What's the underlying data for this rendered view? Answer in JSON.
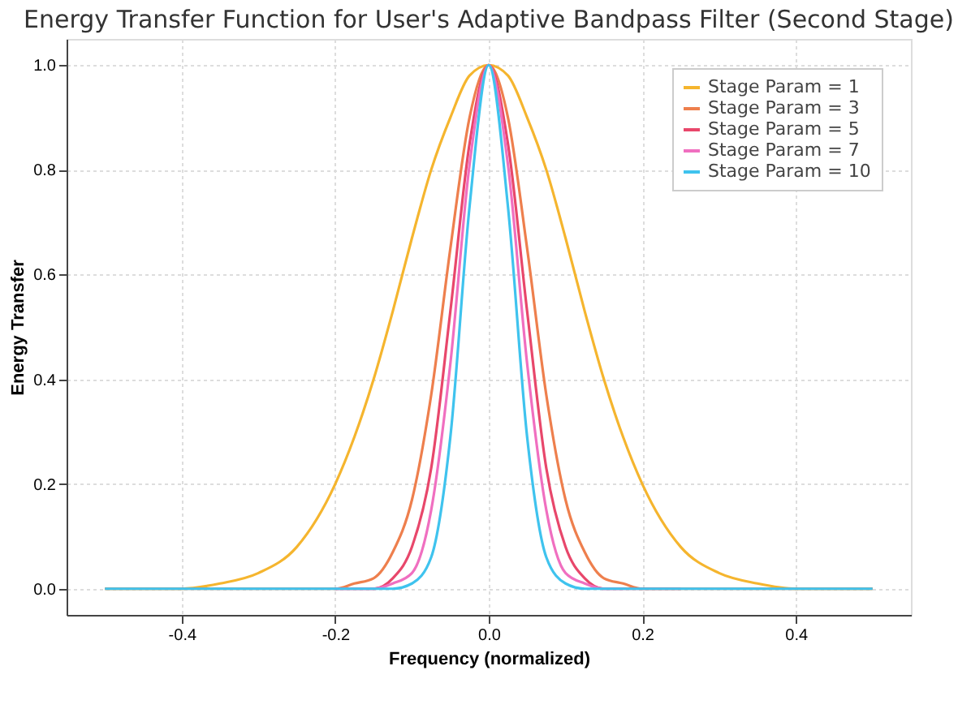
{
  "chart_data": {
    "type": "line",
    "title": "Energy Transfer Function for User's Adaptive Bandpass Filter (Second Stage)",
    "xlabel": "Frequency (normalized)",
    "ylabel": "Energy Transfer",
    "x": [
      -0.5,
      -0.4,
      -0.35,
      -0.3,
      -0.25,
      -0.2,
      -0.175,
      -0.15,
      -0.125,
      -0.1,
      -0.075,
      -0.05,
      -0.025,
      0,
      0.025,
      0.05,
      0.075,
      0.1,
      0.125,
      0.15,
      0.175,
      0.2,
      0.25,
      0.3,
      0.35,
      0.4,
      0.5
    ],
    "series": [
      {
        "name": "Stage Param = 1",
        "color": "#f5b52e",
        "values": [
          0,
          0,
          0.01,
          0.03,
          0.08,
          0.2,
          0.29,
          0.4,
          0.53,
          0.67,
          0.8,
          0.9,
          0.98,
          1,
          0.98,
          0.9,
          0.8,
          0.67,
          0.53,
          0.4,
          0.29,
          0.2,
          0.08,
          0.03,
          0.01,
          0,
          0
        ]
      },
      {
        "name": "Stage Param = 3",
        "color": "#ee7f4d",
        "values": [
          0,
          0,
          0,
          0,
          0,
          0,
          0.01,
          0.02,
          0.07,
          0.17,
          0.37,
          0.65,
          0.9,
          1,
          0.9,
          0.65,
          0.37,
          0.17,
          0.07,
          0.02,
          0.01,
          0,
          0,
          0,
          0,
          0,
          0
        ]
      },
      {
        "name": "Stage Param = 5",
        "color": "#e8476b",
        "values": [
          null,
          null,
          null,
          null,
          null,
          0,
          0,
          0,
          0.02,
          0.08,
          0.23,
          0.53,
          0.85,
          1,
          0.85,
          0.53,
          0.23,
          0.08,
          0.02,
          0,
          0,
          0,
          0,
          null,
          null,
          null,
          null
        ]
      },
      {
        "name": "Stage Param = 7",
        "color": "#f06fc0",
        "values": [
          null,
          null,
          null,
          null,
          null,
          0,
          0,
          0,
          0.01,
          0.03,
          0.15,
          0.43,
          0.81,
          1,
          0.81,
          0.43,
          0.15,
          0.03,
          0.01,
          0,
          0,
          null,
          null,
          null,
          null,
          null,
          null
        ]
      },
      {
        "name": "Stage Param = 10",
        "color": "#3fc3ee",
        "values": [
          0,
          0,
          0,
          0,
          0,
          0,
          0,
          0,
          0,
          0.01,
          0.06,
          0.29,
          0.73,
          1,
          0.73,
          0.29,
          0.06,
          0.01,
          0,
          0,
          0,
          0,
          0,
          0,
          0,
          0,
          0
        ]
      }
    ],
    "xlim": [
      -0.55,
      0.55
    ],
    "xticks": [
      -0.4,
      -0.2,
      {
        "value": 0,
        "label": "0.0"
      },
      0.2,
      0.4
    ],
    "ylim": [
      -0.05,
      1.05
    ],
    "yticks": [
      {
        "value": 0,
        "label": "0.0"
      },
      0.2,
      0.4,
      0.6,
      0.8,
      {
        "value": 1,
        "label": "1.0"
      }
    ],
    "grid": true,
    "legend": "top right",
    "line_style": "solid",
    "marker": "none"
  }
}
